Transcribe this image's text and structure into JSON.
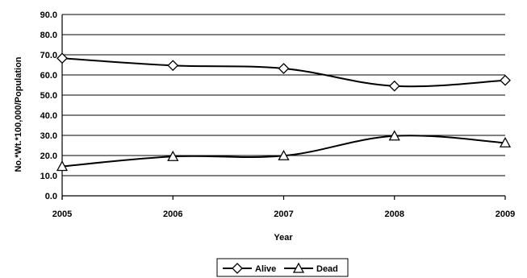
{
  "chart_data": {
    "type": "line",
    "title": "",
    "xlabel": "Year",
    "ylabel": "No.*Wt.*100,000/Population",
    "x": [
      "2005",
      "2006",
      "2007",
      "2008",
      "2009"
    ],
    "ylim": [
      0,
      90
    ],
    "y_ticks": [
      "0.0",
      "10.0",
      "20.0",
      "30.0",
      "40.0",
      "50.0",
      "60.0",
      "70.0",
      "80.0",
      "90.0"
    ],
    "grid": "horizontal",
    "legend_position": "bottom",
    "series": [
      {
        "name": "Alive",
        "marker": "diamond",
        "values": [
          68.3,
          64.7,
          63.2,
          54.5,
          57.3
        ]
      },
      {
        "name": "Dead",
        "marker": "triangle",
        "values": [
          14.6,
          19.5,
          19.9,
          29.7,
          26.3
        ]
      }
    ],
    "colors": {
      "line": "#000000",
      "marker_fill": "#ffffff",
      "grid": "#000000",
      "background": "#ffffff"
    }
  }
}
